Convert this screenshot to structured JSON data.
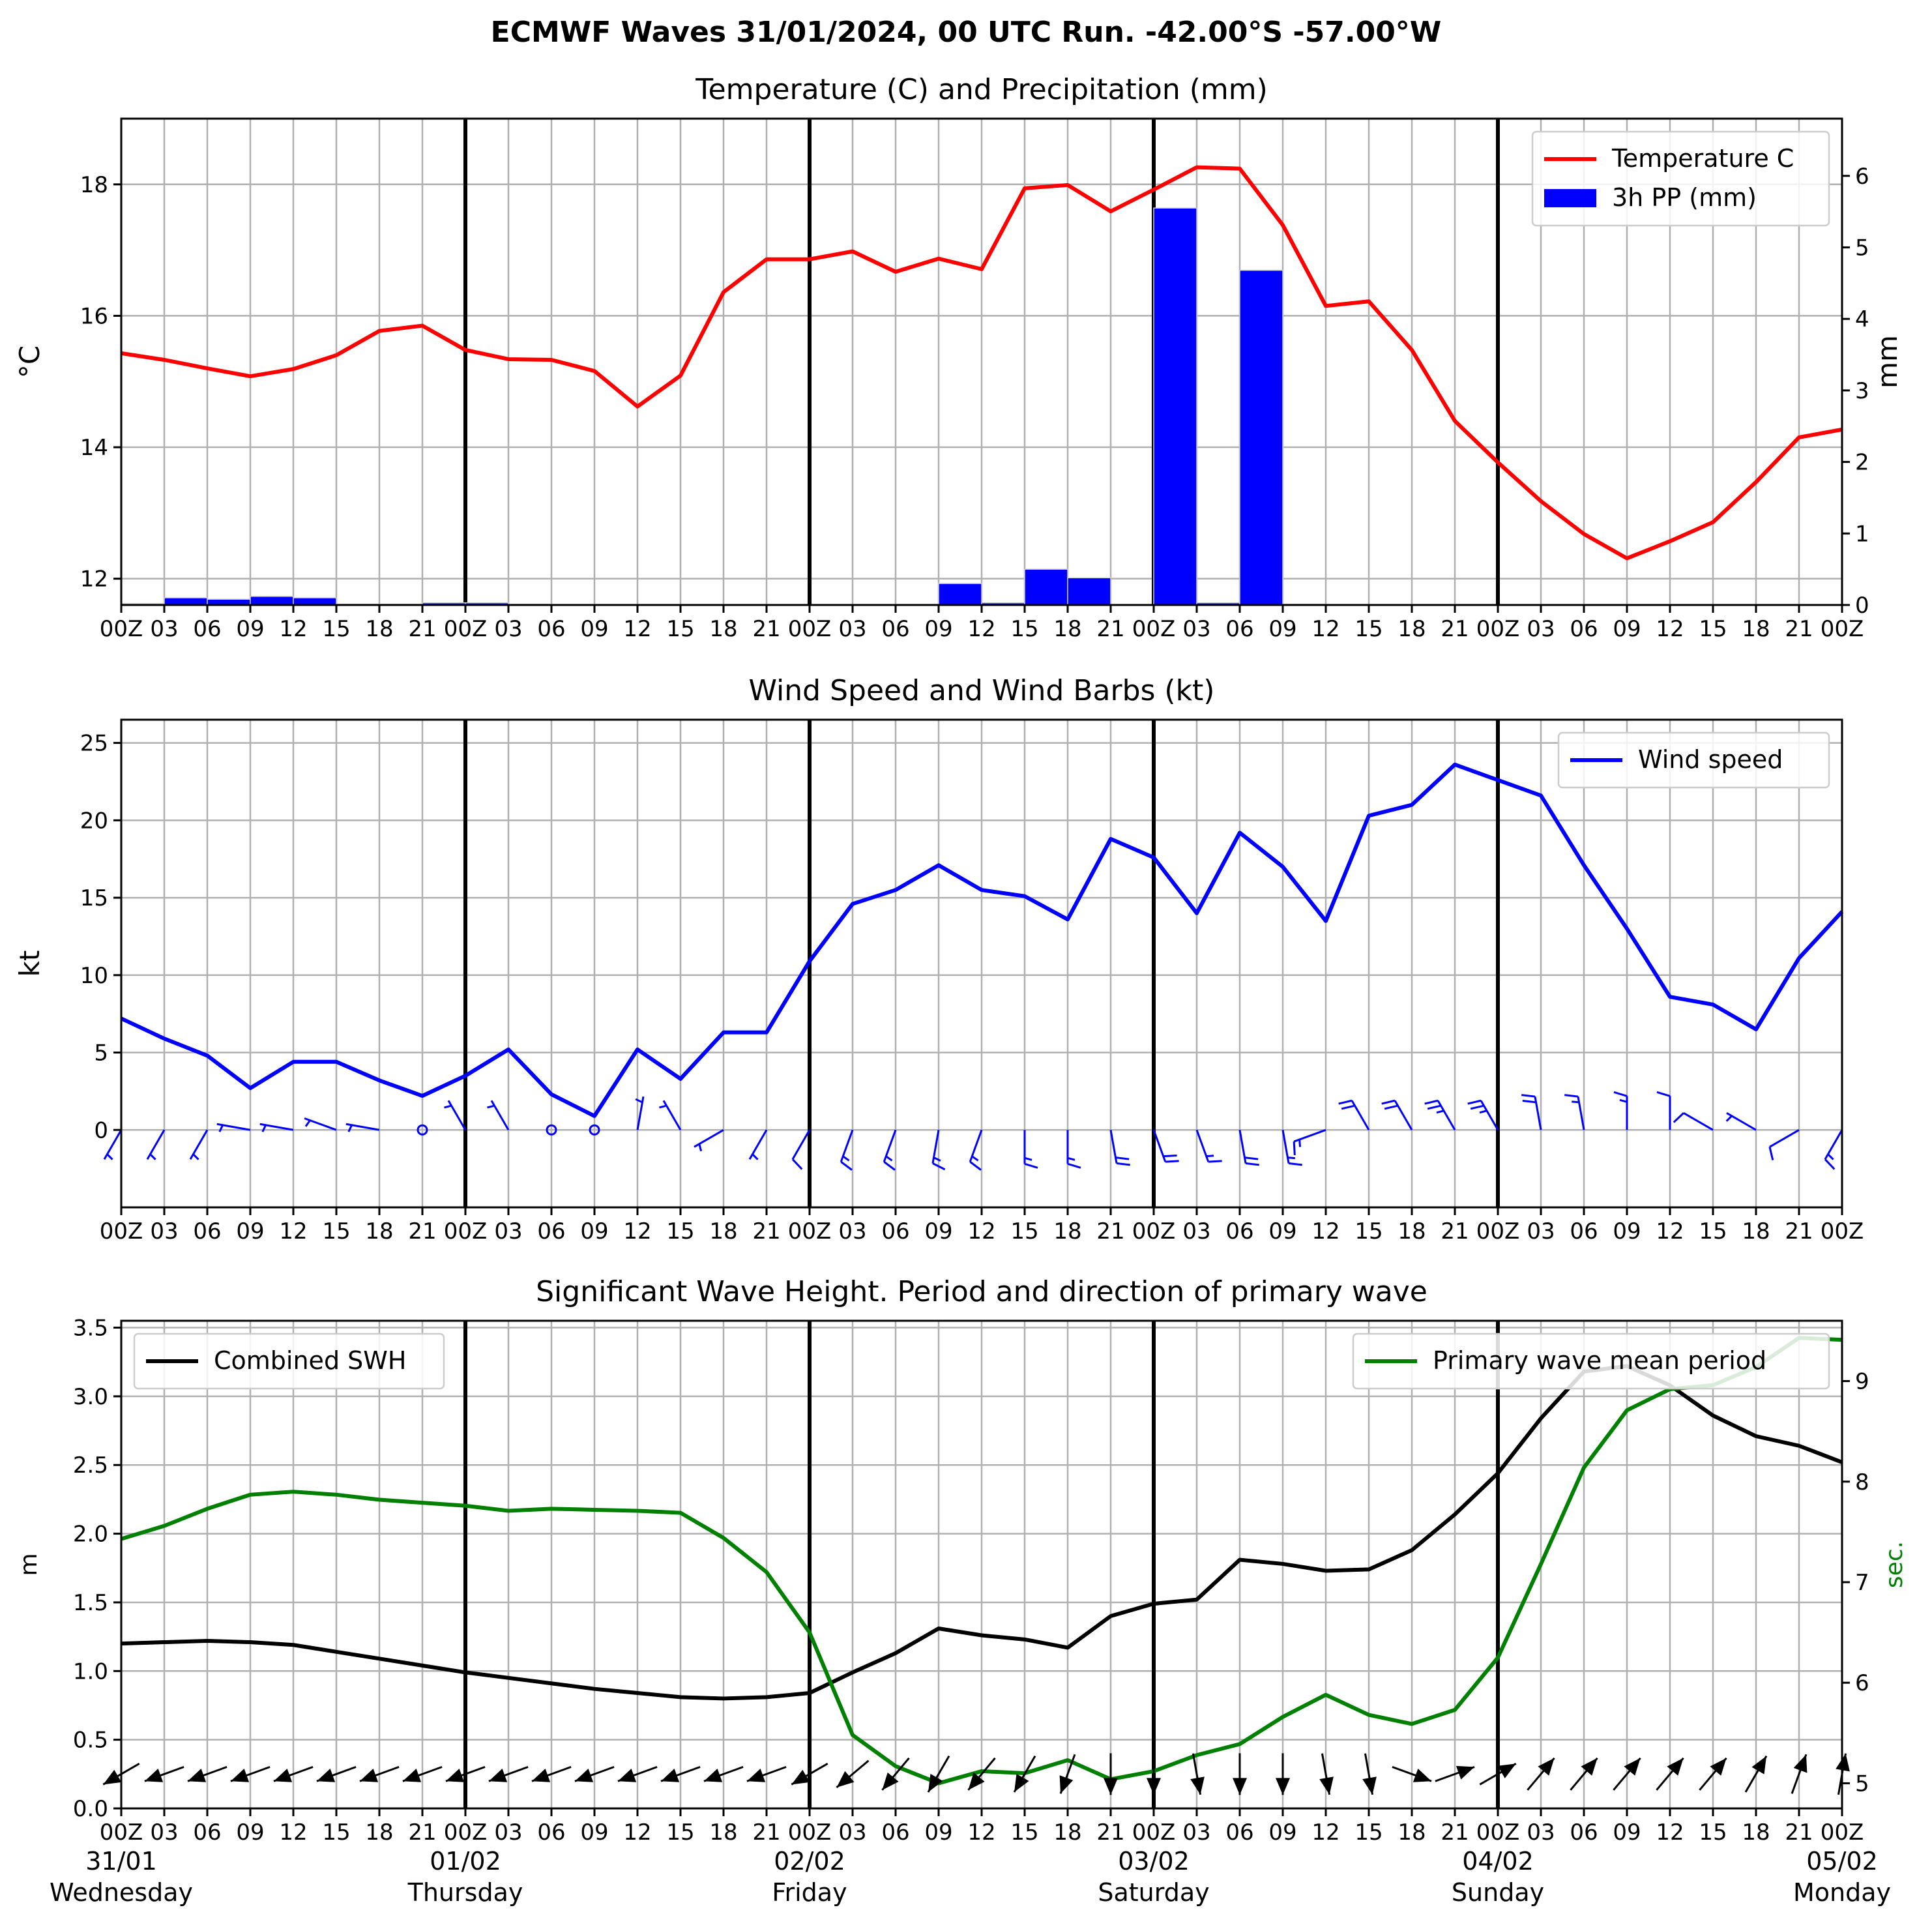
{
  "page_title": "ECMWF Waves 31/01/2024, 00 UTC Run. -42.00°S -57.00°W",
  "x_tick_labels": [
    "00Z",
    "03",
    "06",
    "09",
    "12",
    "15",
    "18",
    "21",
    "00Z",
    "03",
    "06",
    "09",
    "12",
    "15",
    "18",
    "21",
    "00Z",
    "03",
    "06",
    "09",
    "12",
    "15",
    "18",
    "21",
    "00Z",
    "03",
    "06",
    "09",
    "12",
    "15",
    "18",
    "21",
    "00Z",
    "03",
    "06",
    "09",
    "12",
    "15",
    "18",
    "21",
    "00Z"
  ],
  "day_labels": [
    {
      "date": "31/01",
      "weekday": "Wednesday"
    },
    {
      "date": "01/02",
      "weekday": "Thursday"
    },
    {
      "date": "02/02",
      "weekday": "Friday"
    },
    {
      "date": "03/02",
      "weekday": "Saturday"
    },
    {
      "date": "04/02",
      "weekday": "Sunday"
    },
    {
      "date": "05/02",
      "weekday": "Monday"
    }
  ],
  "chart_data": [
    {
      "type": "line",
      "title": "Temperature (C) and Precipitation (mm)",
      "ylabel": "$^\\circ$C",
      "ylabel_right": "mm",
      "ylim": [
        11.6,
        19.0
      ],
      "ylim_right": [
        0,
        6.8
      ],
      "yticks": [
        12,
        14,
        16,
        18
      ],
      "yticks_right": [
        0,
        1,
        2,
        3,
        4,
        5,
        6
      ],
      "legend_position": "top-right",
      "grid": true,
      "series": [
        {
          "name": "Temperature C",
          "kind": "line",
          "color": "#ff0000",
          "values": [
            15.43,
            15.33,
            15.2,
            15.08,
            15.19,
            15.4,
            15.77,
            15.85,
            15.48,
            15.34,
            15.33,
            15.16,
            14.62,
            15.09,
            16.36,
            16.86,
            16.86,
            16.98,
            16.67,
            16.87,
            16.71,
            17.94,
            17.99,
            17.59,
            17.92,
            18.26,
            18.24,
            17.38,
            16.15,
            16.22,
            15.48,
            14.4,
            13.77,
            13.18,
            12.68,
            12.31,
            12.57,
            12.86,
            13.47,
            14.15,
            14.27
          ]
        },
        {
          "name": "3h PP (mm)",
          "kind": "bar",
          "axis": "right",
          "color": "#0000ff",
          "values": [
            0.02,
            0.1,
            0.08,
            0.12,
            0.1,
            0.01,
            0.01,
            0.03,
            0.03,
            0.01,
            0.0,
            0.0,
            0.0,
            0.0,
            0.0,
            0.0,
            0.0,
            0.0,
            0.0,
            0.3,
            0.03,
            0.5,
            0.38,
            0.0,
            5.55,
            0.03,
            4.68,
            0.01,
            0.0,
            0.0,
            0.0,
            0.0,
            0.0,
            0.0,
            0.0,
            0.0,
            0.0,
            0.0,
            0.0,
            0.0
          ]
        }
      ]
    },
    {
      "type": "line",
      "title": "Wind Speed and Wind Barbs (kt)",
      "ylabel": "kt",
      "ylim": [
        -5,
        26.5
      ],
      "yticks": [
        0,
        5,
        10,
        15,
        20,
        25
      ],
      "legend_position": "top-right",
      "grid": true,
      "series": [
        {
          "name": "Wind speed",
          "color": "#0000ff",
          "values": [
            7.2,
            5.9,
            4.8,
            2.7,
            4.4,
            4.4,
            3.2,
            2.2,
            3.5,
            5.2,
            2.3,
            0.9,
            5.2,
            3.3,
            6.3,
            6.3,
            10.9,
            14.6,
            15.5,
            17.1,
            15.5,
            15.1,
            13.6,
            18.8,
            17.6,
            14.0,
            19.2,
            17.0,
            13.5,
            20.3,
            21.0,
            23.6,
            22.6,
            21.6,
            17.1,
            13.0,
            8.6,
            8.1,
            6.5,
            11.1,
            14.1
          ]
        }
      ],
      "barbs": {
        "color": "#0000ff",
        "baseline": 0,
        "speeds_kt": [
          7.2,
          5.9,
          4.8,
          2.7,
          4.4,
          4.4,
          3.2,
          2.2,
          3.5,
          5.2,
          2.3,
          0.9,
          5.2,
          3.3,
          6.3,
          6.3,
          10.9,
          14.6,
          15.5,
          17.1,
          15.5,
          15.1,
          13.6,
          18.8,
          17.6,
          14.0,
          19.2,
          17.0,
          13.5,
          20.3,
          21.0,
          23.6,
          22.6,
          21.6,
          17.1,
          13.0,
          8.6,
          8.1,
          6.5,
          11.1,
          14.1
        ],
        "directions_deg": [
          210,
          210,
          210,
          280,
          280,
          290,
          280,
          0,
          330,
          330,
          0,
          0,
          10,
          330,
          240,
          210,
          210,
          200,
          200,
          190,
          200,
          180,
          180,
          170,
          160,
          160,
          170,
          170,
          250,
          330,
          330,
          330,
          330,
          350,
          350,
          360,
          0,
          300,
          300,
          240,
          210
        ]
      }
    },
    {
      "type": "line",
      "title": "Significant Wave Height. Period and direction of primary wave",
      "ylabel": "m",
      "ylabel_right": "sec.",
      "ylim": [
        0,
        3.55
      ],
      "ylim_right": [
        4.75,
        9.6
      ],
      "yticks": [
        0.0,
        0.5,
        1.0,
        1.5,
        2.0,
        2.5,
        3.0,
        3.5
      ],
      "yticks_right": [
        5,
        6,
        7,
        8,
        9
      ],
      "legend_position": "top-left / top-right",
      "grid": true,
      "series": [
        {
          "name": "Combined SWH",
          "color": "#000000",
          "values": [
            1.2,
            1.21,
            1.22,
            1.21,
            1.19,
            1.14,
            1.09,
            1.04,
            0.99,
            0.95,
            0.91,
            0.87,
            0.84,
            0.81,
            0.8,
            0.81,
            0.84,
            0.99,
            1.13,
            1.31,
            1.26,
            1.23,
            1.17,
            1.4,
            1.49,
            1.52,
            1.81,
            1.78,
            1.73,
            1.74,
            1.88,
            2.14,
            2.44,
            2.84,
            3.18,
            3.22,
            3.08,
            2.86,
            2.71,
            2.64,
            2.52
          ]
        },
        {
          "name": "Primary wave mean period",
          "axis": "right",
          "color": "#008000",
          "values": [
            7.43,
            7.56,
            7.73,
            7.87,
            7.9,
            7.87,
            7.82,
            7.79,
            7.76,
            7.71,
            7.73,
            7.72,
            7.71,
            7.69,
            7.44,
            7.1,
            6.5,
            5.48,
            5.17,
            5.0,
            5.12,
            5.1,
            5.23,
            5.04,
            5.12,
            5.28,
            5.39,
            5.66,
            5.88,
            5.68,
            5.59,
            5.73,
            6.25,
            7.18,
            8.14,
            8.71,
            8.92,
            8.96,
            9.14,
            9.43,
            9.41
          ]
        }
      ],
      "wave_direction_arrows": {
        "color": "#000000",
        "baseline_m": 0.25,
        "directions_to_deg": [
          240,
          250,
          250,
          250,
          250,
          250,
          250,
          250,
          250,
          250,
          250,
          250,
          250,
          250,
          250,
          250,
          240,
          230,
          220,
          210,
          220,
          210,
          200,
          180,
          180,
          170,
          180,
          180,
          170,
          170,
          110,
          70,
          60,
          40,
          40,
          40,
          40,
          40,
          30,
          20,
          10
        ]
      }
    }
  ]
}
